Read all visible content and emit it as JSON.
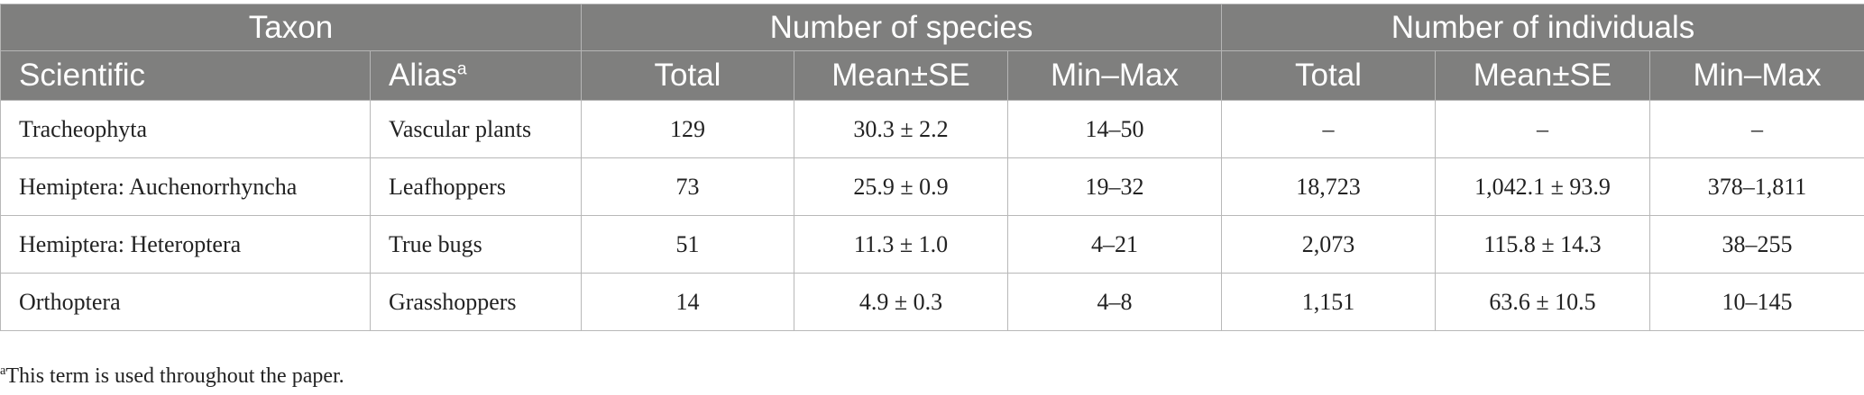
{
  "header": {
    "groups": [
      "Taxon",
      "Number of species",
      "Number of individuals"
    ],
    "columns": {
      "scientific": "Scientific",
      "alias": "Alias",
      "alias_marker": "a",
      "species_total": "Total",
      "species_mean": "Mean±SE",
      "species_range": "Min–Max",
      "individuals_total": "Total",
      "individuals_mean": "Mean±SE",
      "individuals_range": "Min–Max"
    }
  },
  "rows": [
    {
      "scientific": "Tracheophyta",
      "alias": "Vascular plants",
      "species_total": "129",
      "species_mean": "30.3 ± 2.2",
      "species_range": "14–50",
      "individuals_total": "–",
      "individuals_mean": "–",
      "individuals_range": "–"
    },
    {
      "scientific": "Hemiptera: Auchenorrhyncha",
      "alias": "Leafhoppers",
      "species_total": "73",
      "species_mean": "25.9 ± 0.9",
      "species_range": "19–32",
      "individuals_total": "18,723",
      "individuals_mean": "1,042.1 ± 93.9",
      "individuals_range": "378–1,811"
    },
    {
      "scientific": "Hemiptera: Heteroptera",
      "alias": "True bugs",
      "species_total": "51",
      "species_mean": "11.3 ± 1.0",
      "species_range": "4–21",
      "individuals_total": "2,073",
      "individuals_mean": "115.8 ± 14.3",
      "individuals_range": "38–255"
    },
    {
      "scientific": "Orthoptera",
      "alias": "Grasshoppers",
      "species_total": "14",
      "species_mean": "4.9 ± 0.3",
      "species_range": "4–8",
      "individuals_total": "1,151",
      "individuals_mean": "63.6 ± 10.5",
      "individuals_range": "10–145"
    }
  ],
  "footnote": {
    "marker": "a",
    "text": "This term is used throughout the paper."
  },
  "colors": {
    "header_background": "#7f7f7e",
    "header_text": "#ffffff",
    "body_text": "#222222",
    "grid_line": "#b8b8b8"
  }
}
